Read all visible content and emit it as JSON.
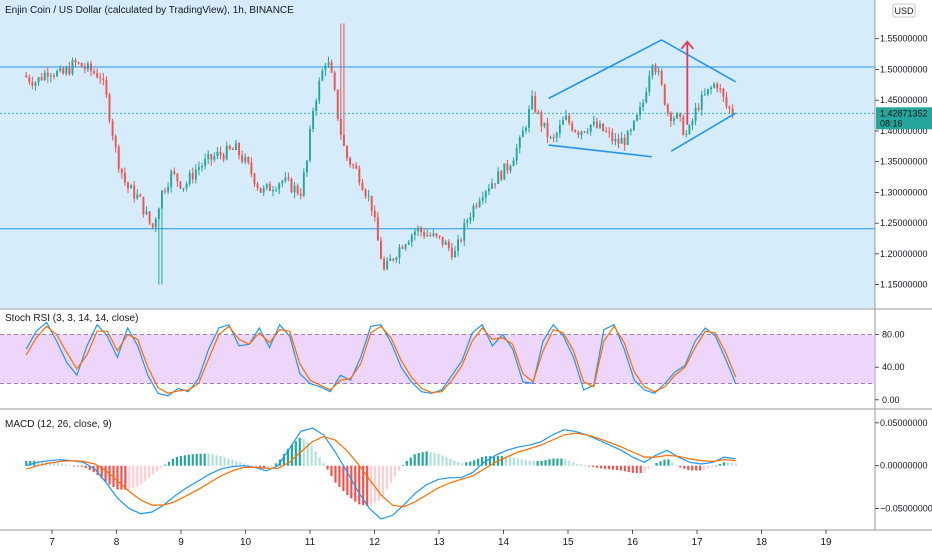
{
  "chart_data": [
    {
      "type": "candlestick",
      "title": "Enjin Coin / US Dollar (calculated by TradingView), 1h, BINANCE",
      "currency": "USD",
      "last_price": "1.42871352",
      "countdown": "08:16",
      "yticks": [
        "1.55000000",
        "1.50000000",
        "1.45000000",
        "1.40000000",
        "1.35000000",
        "1.30000000",
        "1.25000000",
        "1.20000000",
        "1.15000000"
      ],
      "ylim": [
        1.125,
        1.6
      ],
      "horizontal_levels": [
        1.504,
        1.241
      ],
      "grid": false,
      "colors": {
        "up": "#26a69a",
        "down": "#ef5350",
        "background": "#d6ecfb",
        "lines": "#2196f3",
        "arrow": "#e53950"
      },
      "series_anchors": {
        "x_day": [
          6.6,
          6.8,
          7.0,
          7.2,
          7.4,
          7.6,
          7.8,
          7.9,
          8.05,
          8.2,
          8.4,
          8.6,
          8.75,
          8.9,
          9.1,
          9.3,
          9.6,
          9.9,
          10.1,
          10.3,
          10.6,
          10.9,
          11.0,
          11.1,
          11.3,
          11.4,
          11.5,
          11.6,
          11.8,
          12.0,
          12.1,
          12.2,
          12.3,
          12.5,
          12.7,
          12.9,
          13.1,
          13.3,
          13.5,
          13.7,
          13.9,
          14.1,
          14.3,
          14.5,
          14.6,
          14.8,
          15.0,
          15.2,
          15.4,
          15.6,
          15.8,
          16.0,
          16.2,
          16.35,
          16.45,
          16.6,
          16.75,
          16.9,
          17.05,
          17.2,
          17.35,
          17.5,
          17.6
        ],
        "close": [
          1.49,
          1.48,
          1.5,
          1.49,
          1.51,
          1.5,
          1.49,
          1.45,
          1.36,
          1.31,
          1.29,
          1.24,
          1.3,
          1.33,
          1.31,
          1.34,
          1.36,
          1.37,
          1.34,
          1.3,
          1.32,
          1.3,
          1.35,
          1.44,
          1.52,
          1.48,
          1.41,
          1.36,
          1.33,
          1.28,
          1.22,
          1.17,
          1.19,
          1.22,
          1.24,
          1.23,
          1.22,
          1.2,
          1.26,
          1.3,
          1.32,
          1.34,
          1.38,
          1.45,
          1.42,
          1.38,
          1.42,
          1.4,
          1.41,
          1.4,
          1.38,
          1.39,
          1.44,
          1.52,
          1.49,
          1.43,
          1.42,
          1.39,
          1.44,
          1.46,
          1.48,
          1.44,
          1.43
        ],
        "candle_count": 230,
        "high_spike_at_day_11_5": 1.575,
        "low_spike_at_day_8_7": 1.15
      },
      "annotations": [
        {
          "type": "trendline",
          "from": [
            14.7,
            1.453
          ],
          "to": [
            16.45,
            1.548
          ]
        },
        {
          "type": "trendline",
          "from": [
            14.7,
            1.377
          ],
          "to": [
            16.3,
            1.358
          ]
        },
        {
          "type": "trendline",
          "from": [
            16.45,
            1.548
          ],
          "to": [
            17.6,
            1.48
          ]
        },
        {
          "type": "trendline",
          "from": [
            16.6,
            1.367
          ],
          "to": [
            17.6,
            1.429
          ]
        },
        {
          "type": "arrow",
          "from": [
            16.85,
            1.41
          ],
          "to": [
            16.85,
            1.545
          ]
        }
      ]
    },
    {
      "type": "line",
      "title": "Stoch RSI (3, 3, 14, 14, close)",
      "yticks": [
        "80.00",
        "40.00",
        "0.00"
      ],
      "ylim": [
        -10,
        110
      ],
      "bands": [
        20,
        80
      ],
      "colors": {
        "k": "#2196f3",
        "d": "#ff6d00",
        "band": "#e1bbf7"
      },
      "series": [
        {
          "name": "K",
          "values": [
            62,
            84,
            95,
            72,
            46,
            30,
            66,
            92,
            78,
            52,
            88,
            66,
            30,
            8,
            5,
            14,
            10,
            26,
            62,
            88,
            92,
            66,
            68,
            88,
            64,
            92,
            78,
            32,
            20,
            16,
            10,
            30,
            24,
            52,
            90,
            92,
            70,
            40,
            22,
            10,
            8,
            12,
            30,
            48,
            82,
            92,
            66,
            80,
            62,
            22,
            20,
            72,
            92,
            78,
            52,
            12,
            18,
            86,
            92,
            62,
            24,
            12,
            8,
            20,
            34,
            42,
            72,
            88,
            78,
            50,
            20
          ]
        },
        {
          "name": "D",
          "values": [
            55,
            76,
            90,
            80,
            58,
            38,
            55,
            84,
            84,
            60,
            80,
            74,
            40,
            15,
            8,
            11,
            12,
            20,
            50,
            80,
            90,
            74,
            68,
            82,
            70,
            86,
            84,
            44,
            24,
            18,
            12,
            24,
            26,
            44,
            82,
            90,
            76,
            48,
            28,
            14,
            9,
            10,
            24,
            42,
            72,
            88,
            74,
            76,
            68,
            32,
            22,
            60,
            86,
            82,
            60,
            22,
            16,
            72,
            90,
            70,
            34,
            16,
            10,
            16,
            30,
            40,
            64,
            84,
            82,
            58,
            28
          ]
        }
      ]
    },
    {
      "type": "bar+line",
      "title": "MACD (12, 26, close, 9)",
      "yticks": [
        "0.05000000",
        "0.00000000",
        "−0.05000000"
      ],
      "ylim": [
        -0.075,
        0.065
      ],
      "colors": {
        "macd": "#2196f3",
        "signal": "#ff6d00",
        "hist_up": "#26a69a",
        "hist_up_weak": "#b2dfdb",
        "hist_down": "#ef5350",
        "hist_down_weak": "#ffcdd2"
      },
      "series": [
        {
          "name": "MACD",
          "values": [
            0.0,
            0.004,
            0.006,
            0.007,
            0.006,
            0.004,
            -0.004,
            -0.02,
            -0.038,
            -0.05,
            -0.056,
            -0.054,
            -0.046,
            -0.035,
            -0.026,
            -0.018,
            -0.01,
            -0.004,
            -0.001,
            0.0,
            -0.002,
            -0.006,
            0.0,
            0.02,
            0.04,
            0.044,
            0.036,
            0.016,
            -0.006,
            -0.03,
            -0.05,
            -0.062,
            -0.058,
            -0.046,
            -0.032,
            -0.022,
            -0.016,
            -0.014,
            -0.014,
            -0.008,
            0.004,
            0.012,
            0.018,
            0.022,
            0.024,
            0.028,
            0.036,
            0.042,
            0.04,
            0.036,
            0.03,
            0.024,
            0.018,
            0.01,
            0.004,
            0.012,
            0.018,
            0.01,
            0.004,
            0.002,
            0.004,
            0.01,
            0.008
          ]
        },
        {
          "name": "Signal",
          "values": [
            -0.004,
            0.0,
            0.003,
            0.005,
            0.006,
            0.005,
            0.002,
            -0.006,
            -0.018,
            -0.03,
            -0.04,
            -0.046,
            -0.046,
            -0.042,
            -0.035,
            -0.028,
            -0.02,
            -0.012,
            -0.006,
            -0.002,
            -0.002,
            -0.003,
            -0.003,
            0.004,
            0.016,
            0.028,
            0.034,
            0.03,
            0.018,
            0.002,
            -0.016,
            -0.034,
            -0.046,
            -0.048,
            -0.042,
            -0.034,
            -0.026,
            -0.02,
            -0.016,
            -0.012,
            -0.004,
            0.004,
            0.01,
            0.016,
            0.02,
            0.024,
            0.03,
            0.036,
            0.038,
            0.036,
            0.032,
            0.027,
            0.022,
            0.016,
            0.01,
            0.01,
            0.012,
            0.011,
            0.008,
            0.006,
            0.005,
            0.007,
            0.006
          ]
        }
      ]
    }
  ],
  "x_axis": {
    "tick_days": [
      7,
      8,
      9,
      10,
      11,
      12,
      13,
      14,
      15,
      16,
      17,
      18,
      19
    ],
    "labels": [
      "7",
      "8",
      "9",
      "10",
      "11",
      "12",
      "13",
      "14",
      "15",
      "16",
      "17",
      "18",
      "19"
    ]
  }
}
